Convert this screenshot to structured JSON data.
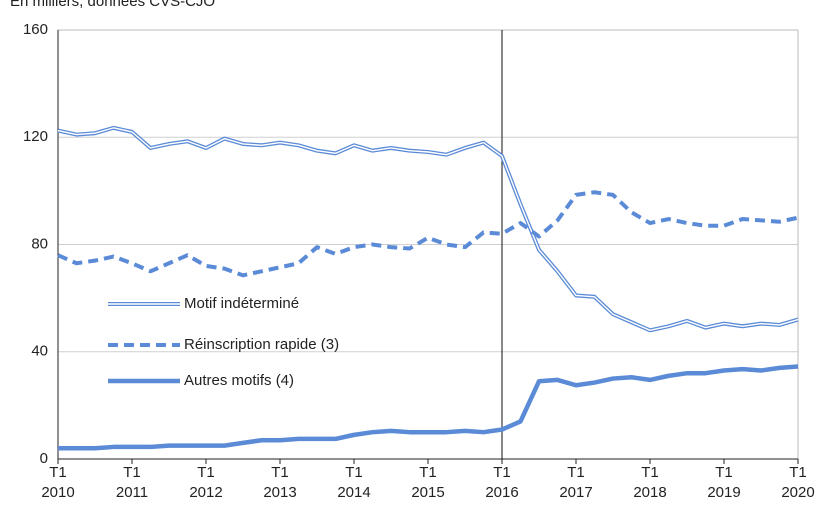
{
  "chart_data": {
    "type": "line",
    "subtitle": "En milliers, données CVS-CJO",
    "x_tick_prefix": "T1",
    "categories": [
      "2010",
      null,
      null,
      null,
      "2011",
      null,
      null,
      null,
      "2012",
      null,
      null,
      null,
      "2013",
      null,
      null,
      null,
      "2014",
      null,
      null,
      null,
      "2015",
      null,
      null,
      null,
      "2016",
      null,
      null,
      null,
      "2017",
      null,
      null,
      null,
      "2018",
      null,
      null,
      null,
      "2019",
      null,
      null,
      null,
      "2020"
    ],
    "ylim": [
      0,
      160
    ],
    "yticks": [
      0,
      40,
      80,
      120,
      160
    ],
    "grid": true,
    "vertical_line_index": 24,
    "series": [
      {
        "name": "Motif indéterminé",
        "color": "#5b8bd6",
        "style": "double",
        "values": [
          122.5,
          121,
          121.5,
          123.5,
          122,
          116,
          117.5,
          118.5,
          116,
          119.5,
          117.5,
          117,
          118,
          117,
          115,
          114,
          117,
          115,
          116,
          115,
          114.5,
          113.5,
          116,
          118,
          113,
          95,
          78,
          70,
          61,
          60.5,
          54,
          51,
          48,
          49.5,
          51.5,
          49,
          50.5,
          49.5,
          50.5,
          50,
          52
        ]
      },
      {
        "name": "Réinscription rapide (3)",
        "color": "#5b8bd6",
        "style": "dashed",
        "values": [
          76,
          73,
          74,
          75.5,
          73,
          70,
          73,
          76,
          72,
          71,
          68.5,
          70,
          71.5,
          73,
          79,
          76.5,
          79,
          80,
          79,
          78.5,
          82.5,
          80,
          79,
          84.5,
          84,
          88,
          83,
          89,
          98.5,
          99.5,
          98.5,
          92,
          88,
          89.5,
          88,
          87,
          87,
          89.5,
          89,
          88.5,
          90
        ]
      },
      {
        "name": "Autres motifs (4)",
        "color": "#5b8bd6",
        "style": "solid",
        "values": [
          4,
          4,
          4,
          4.5,
          4.5,
          4.5,
          5,
          5,
          5,
          5,
          6,
          7,
          7,
          7.5,
          7.5,
          7.5,
          9,
          10,
          10.5,
          10,
          10,
          10,
          10.5,
          10,
          11,
          14,
          29,
          29.5,
          27.5,
          28.5,
          30,
          30.5,
          29.5,
          31,
          32,
          32,
          33,
          33.5,
          33,
          34,
          34.5
        ]
      }
    ]
  }
}
